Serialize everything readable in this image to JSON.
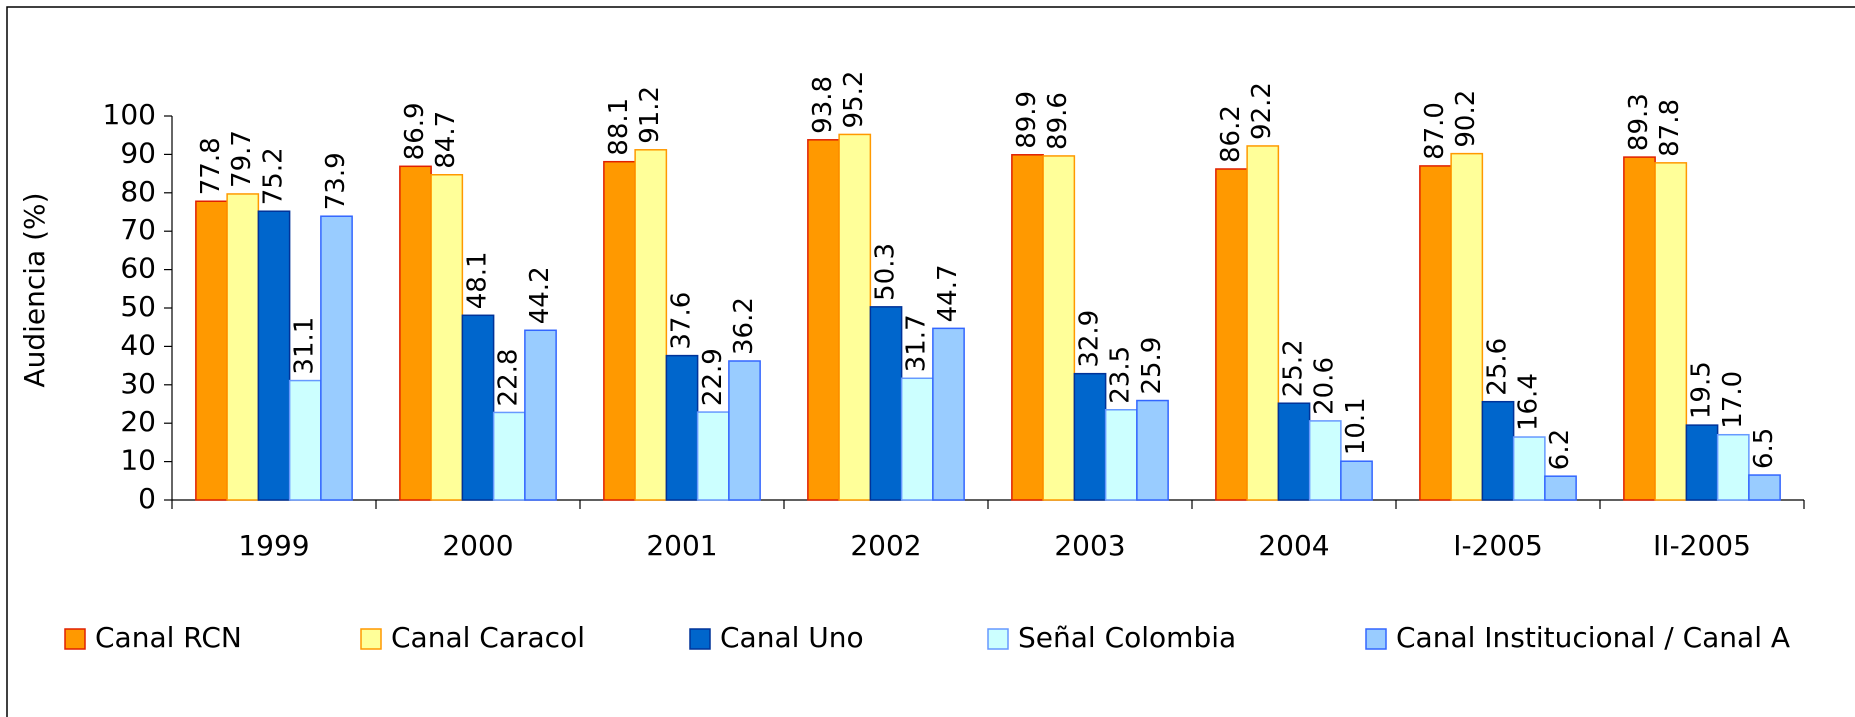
{
  "chart_data": {
    "type": "bar",
    "y_label": "Audiencia (%)",
    "categories": [
      "1999",
      "2000",
      "2001",
      "2002",
      "2003",
      "2004",
      "I-2005",
      "II-2005"
    ],
    "series": [
      {
        "name": "Canal RCN",
        "color": "#ff9900",
        "border": "#e02000",
        "values": [
          77.8,
          86.9,
          88.1,
          93.8,
          89.9,
          86.2,
          87.0,
          89.3
        ],
        "value_labels": [
          "77.8",
          "86.9",
          "88.1",
          "93.8",
          "89.9",
          "86.2",
          "87.0",
          "89.3"
        ]
      },
      {
        "name": "Canal Caracol",
        "color": "#ffff99",
        "border": "#ff9900",
        "values": [
          79.7,
          84.7,
          91.2,
          95.2,
          89.6,
          92.2,
          90.2,
          87.8
        ],
        "value_labels": [
          "79.7",
          "84.7",
          "91.2",
          "95.2",
          "89.6",
          "92.2",
          "90.2",
          "87.8"
        ]
      },
      {
        "name": "Canal Uno",
        "color": "#0066cc",
        "border": "#003399",
        "values": [
          75.2,
          48.1,
          37.6,
          50.3,
          32.9,
          25.2,
          25.6,
          19.5
        ],
        "value_labels": [
          "75.2",
          "48.1",
          "37.6",
          "50.3",
          "32.9",
          "25.2",
          "25.6",
          "19.5"
        ]
      },
      {
        "name": "Señal Colombia",
        "color": "#ccffff",
        "border": "#6699ff",
        "values": [
          31.1,
          22.8,
          22.9,
          31.7,
          23.5,
          20.6,
          16.4,
          17.0
        ],
        "value_labels": [
          "31.1",
          "22.8",
          "22.9",
          "31.7",
          "23.5",
          "20.6",
          "16.4",
          "17.0"
        ]
      },
      {
        "name": "Canal Institucional / Canal A",
        "color": "#99ccff",
        "border": "#3366ff",
        "values": [
          73.9,
          44.2,
          36.2,
          44.7,
          25.9,
          10.1,
          6.2,
          6.5
        ],
        "value_labels": [
          "73.9",
          "44.2",
          "36.2",
          "44.7",
          "25.9",
          "10.1",
          "6.2",
          "6.5"
        ]
      }
    ],
    "ylim": [
      0,
      100
    ],
    "yticks": [
      0,
      10,
      20,
      30,
      40,
      50,
      60,
      70,
      80,
      90,
      100
    ],
    "legend": "bottom"
  }
}
